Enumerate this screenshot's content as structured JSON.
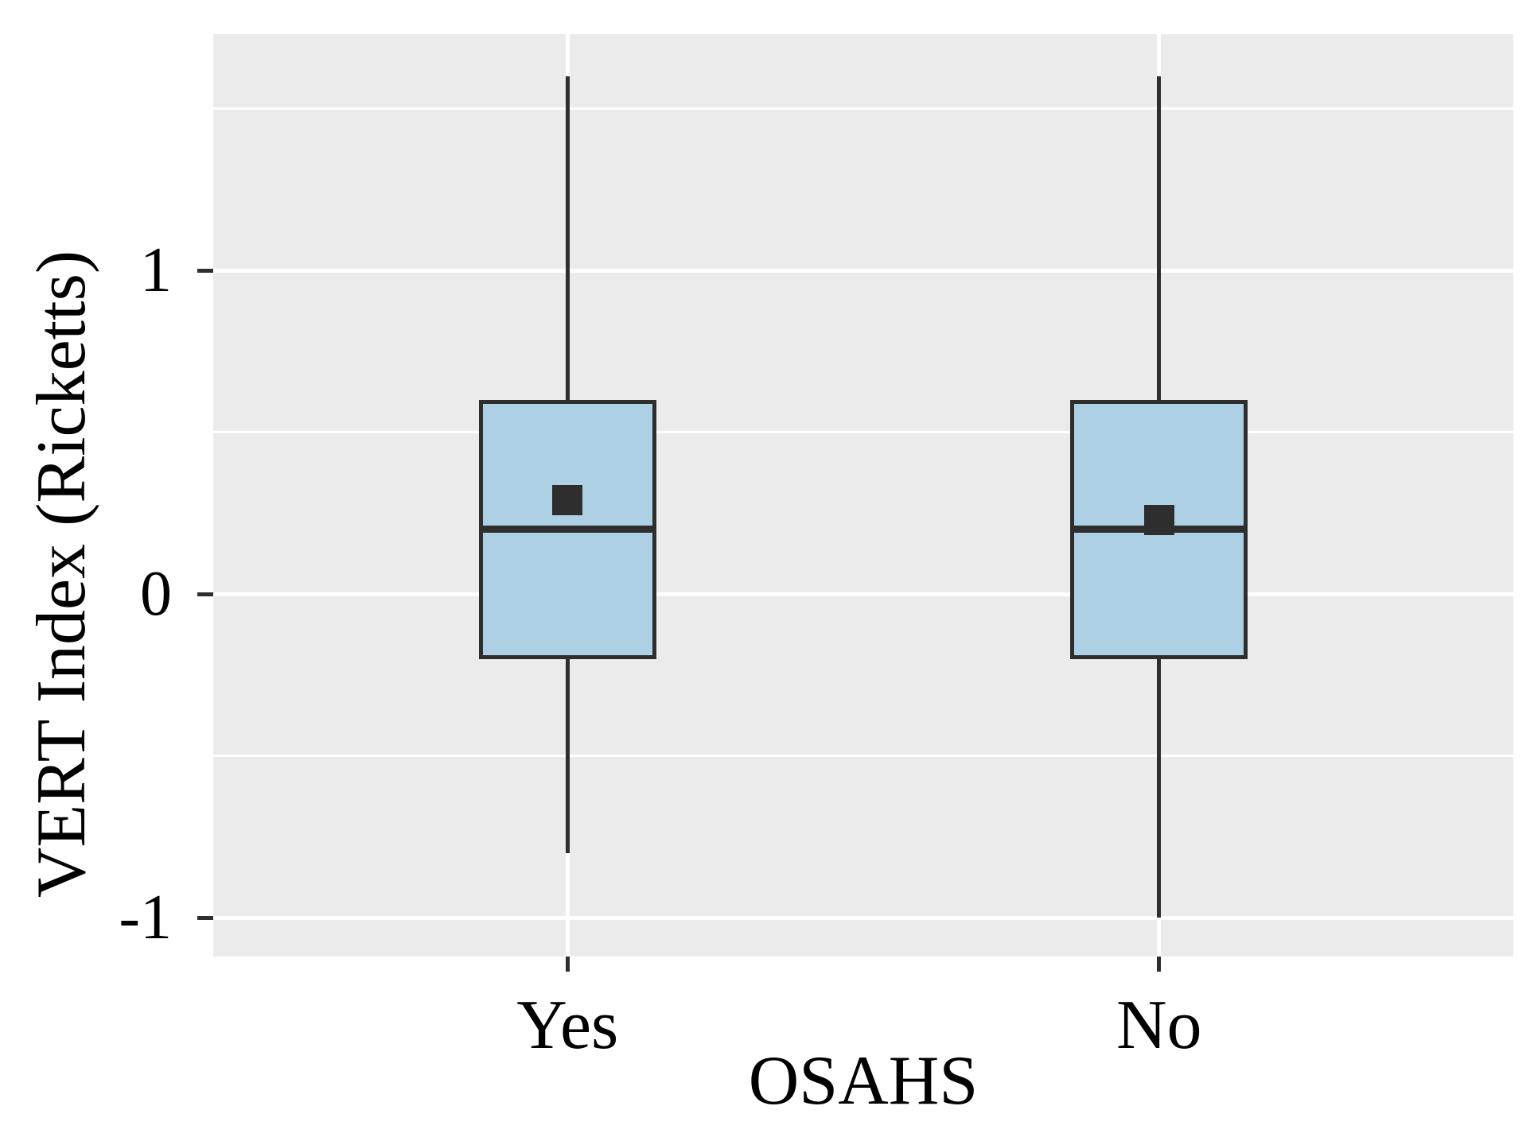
{
  "chart_data": {
    "type": "boxplot",
    "title": "",
    "xlabel": "OSAHS",
    "ylabel": "VERT Index (Ricketts)",
    "categories": [
      "Yes",
      "No"
    ],
    "y_tick_labels": [
      "1",
      "0",
      "-1"
    ],
    "y_tick_values": [
      1,
      0,
      -1
    ],
    "minor_gridline_values": [
      1.5,
      0.5,
      -0.5
    ],
    "ylim": [
      -1.12,
      1.73
    ],
    "grid": true,
    "legend_position": "none",
    "series": [
      {
        "category": "Yes",
        "whisker_low": -0.8,
        "q1": -0.2,
        "median": 0.2,
        "q3": 0.6,
        "whisker_high": 1.6,
        "mean": 0.29
      },
      {
        "category": "No",
        "whisker_low": -1.0,
        "q1": -0.2,
        "median": 0.2,
        "q3": 0.6,
        "whisker_high": 1.6,
        "mean": 0.23
      }
    ],
    "colors": {
      "page_bg": "#ffffff",
      "panel_bg": "#EBEBEB",
      "gridline": "#ffffff",
      "box_fill": "#ADD0E5",
      "box_border": "#2E2E2E",
      "median": "#2E2E2E",
      "mean_marker": "#2E2E2E",
      "whisker": "#2E2E2E",
      "tick": "#2E2E2E",
      "text": "#000000"
    }
  }
}
